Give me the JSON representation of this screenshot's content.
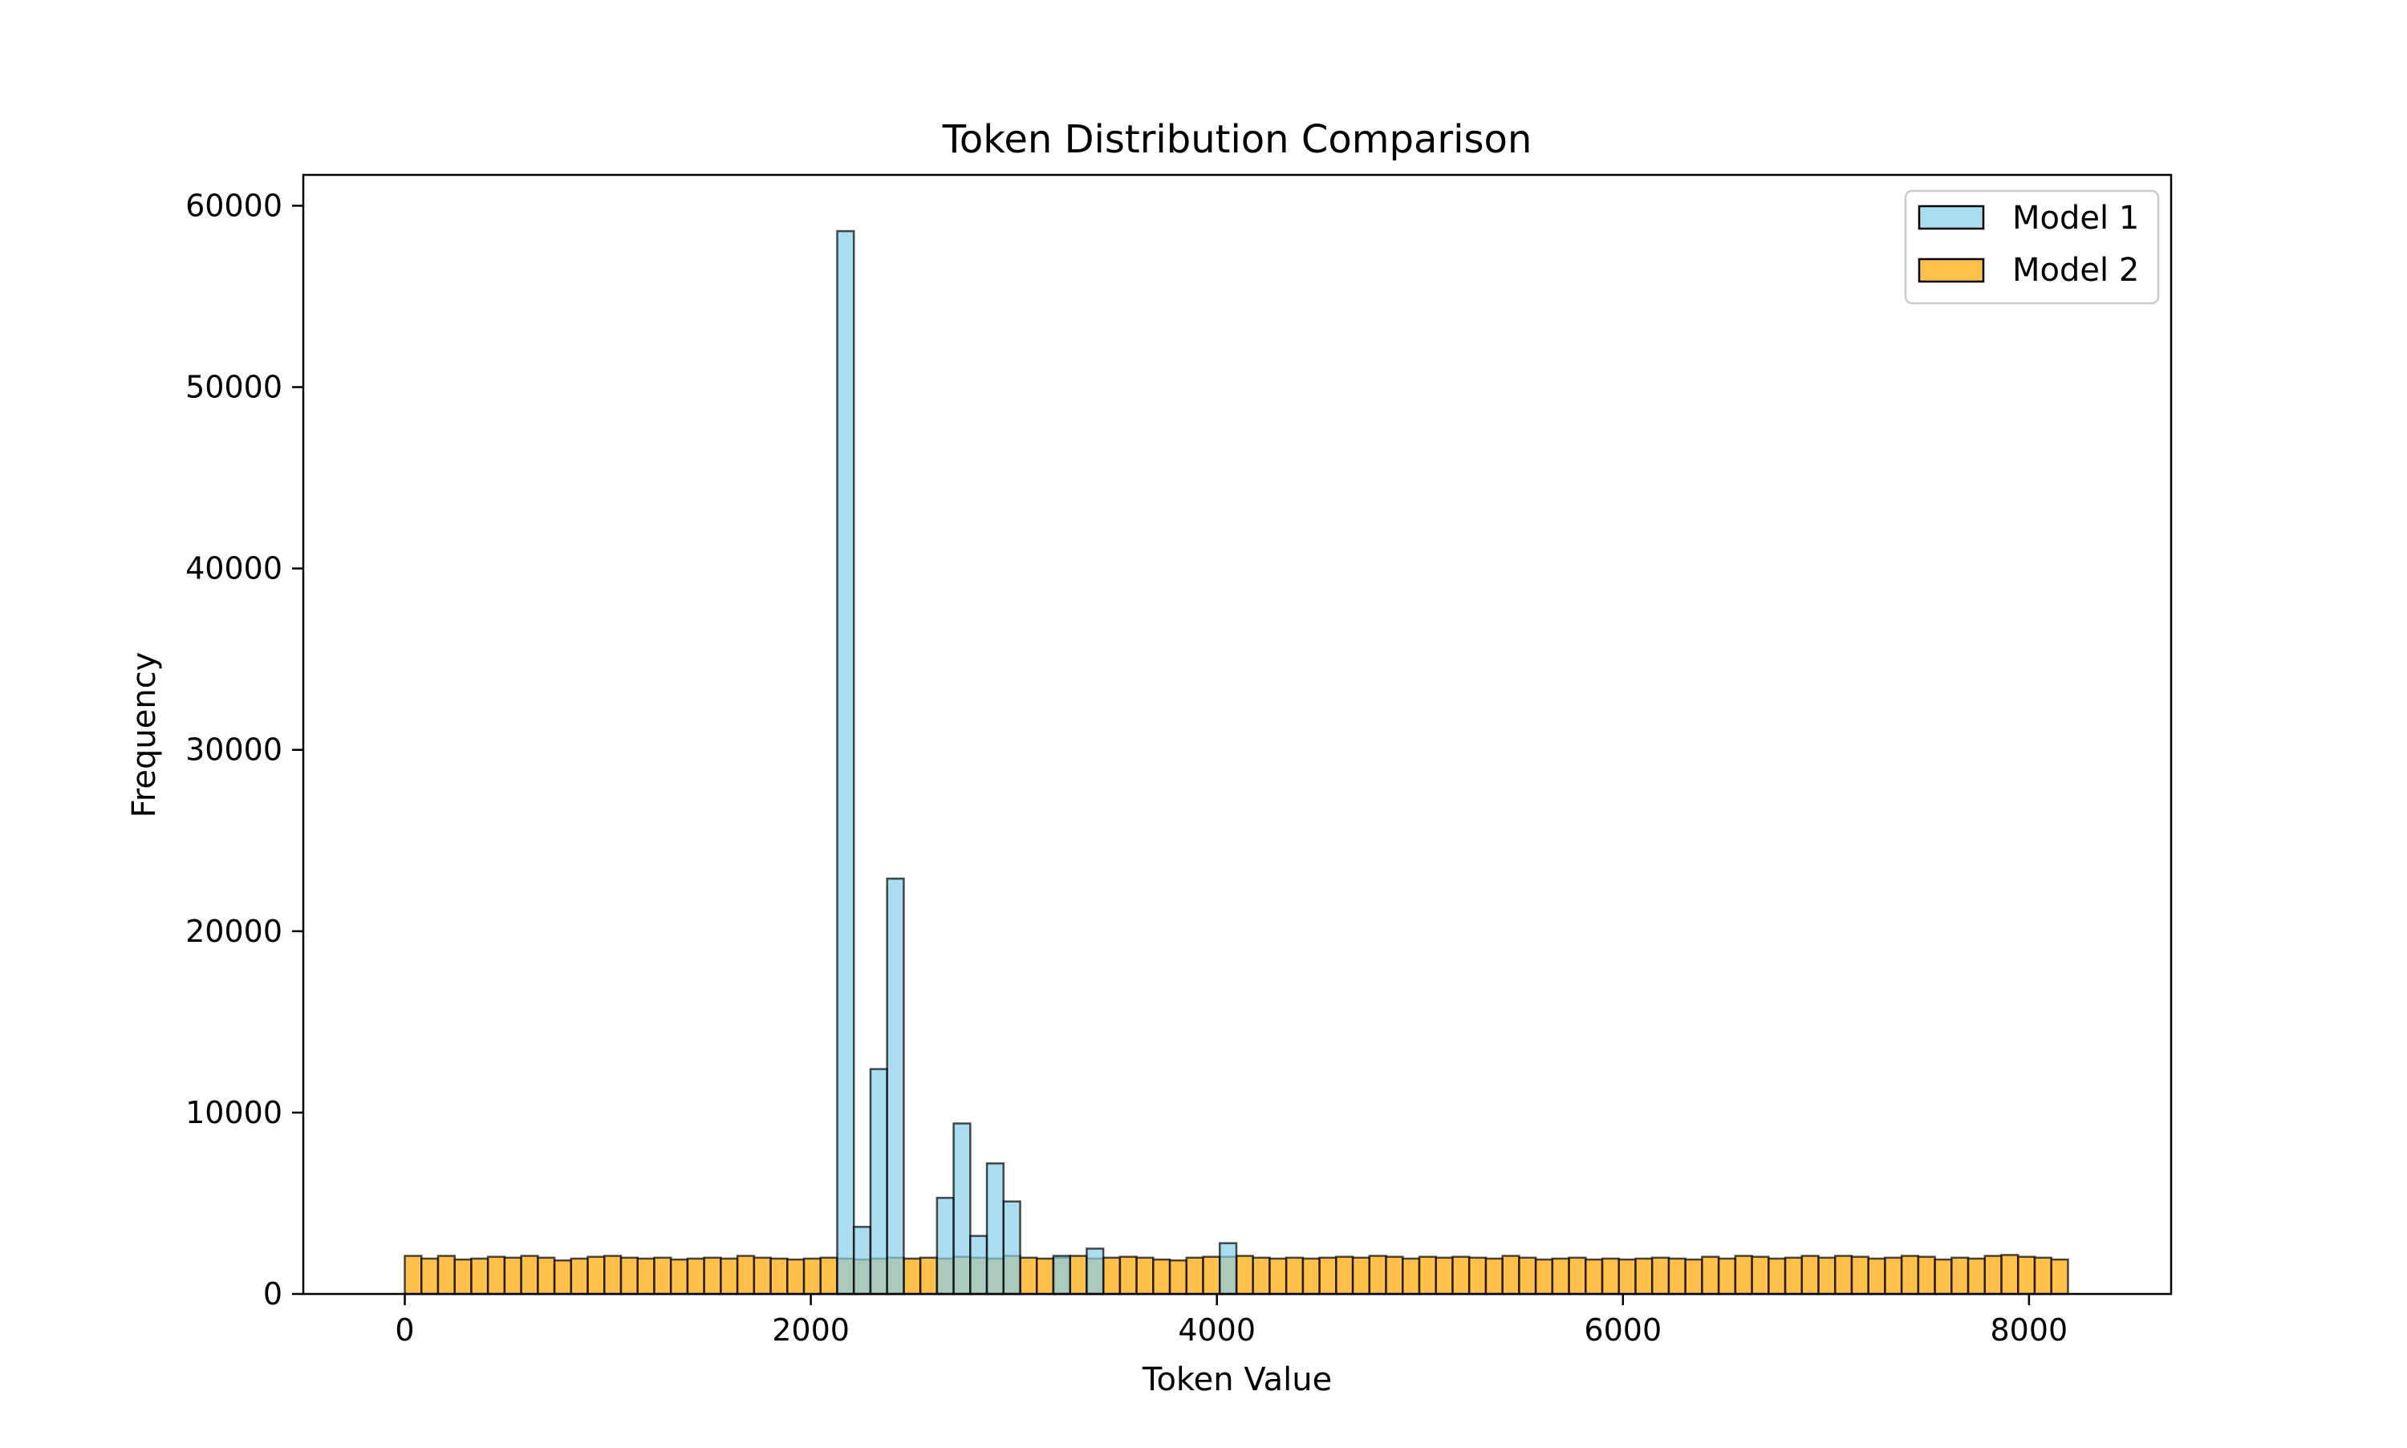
{
  "chart_data": {
    "type": "histogram",
    "title": "Token Distribution Comparison",
    "xlabel": "Token Value",
    "ylabel": "Frequency",
    "xlim": [
      -500,
      8700
    ],
    "ylim": [
      0,
      61700
    ],
    "xticks": [
      0,
      2000,
      4000,
      6000,
      8000
    ],
    "yticks": [
      0,
      10000,
      20000,
      30000,
      40000,
      50000,
      60000
    ],
    "grid": false,
    "legend_position": "top-right",
    "bins": {
      "start": 0,
      "width": 81.92,
      "count": 100
    },
    "series": [
      {
        "name": "Model 1",
        "color": "#87ceeb",
        "edge_color": "#000000",
        "opacity": 0.7,
        "values": [
          0,
          0,
          0,
          0,
          0,
          0,
          0,
          0,
          0,
          0,
          0,
          0,
          0,
          0,
          0,
          0,
          0,
          0,
          0,
          0,
          0,
          0,
          0,
          0,
          0,
          0,
          58600,
          3700,
          12400,
          22900,
          0,
          0,
          5300,
          9400,
          3200,
          7200,
          5100,
          0,
          0,
          2100,
          0,
          2500,
          0,
          0,
          0,
          0,
          0,
          0,
          0,
          2800,
          0,
          0,
          0,
          0,
          0,
          0,
          0,
          0,
          0,
          0,
          0,
          0,
          0,
          0,
          0,
          0,
          0,
          0,
          0,
          0,
          0,
          0,
          0,
          0,
          0,
          0,
          0,
          0,
          0,
          0,
          0,
          0,
          0,
          0,
          0,
          0,
          0,
          0,
          0,
          0,
          0,
          0,
          0,
          0,
          0,
          0,
          0,
          0,
          0,
          0
        ]
      },
      {
        "name": "Model 2",
        "color": "#ffa500",
        "edge_color": "#000000",
        "opacity": 0.7,
        "values": [
          2100,
          1950,
          2100,
          1900,
          1950,
          2050,
          2000,
          2100,
          2000,
          1850,
          1950,
          2050,
          2100,
          2000,
          1950,
          2000,
          1900,
          1950,
          2000,
          1950,
          2100,
          2000,
          1950,
          1900,
          1950,
          2000,
          1950,
          1900,
          1950,
          2000,
          1950,
          2000,
          1950,
          2050,
          2000,
          1950,
          2100,
          2000,
          1950,
          2000,
          2100,
          1950,
          2000,
          2050,
          2000,
          1900,
          1850,
          2000,
          2050,
          2050,
          2100,
          2000,
          1950,
          2000,
          1950,
          2000,
          2050,
          2000,
          2100,
          2050,
          1950,
          2050,
          2000,
          2050,
          2000,
          1950,
          2100,
          2000,
          1900,
          1950,
          2000,
          1900,
          1950,
          1900,
          1950,
          2000,
          1950,
          1900,
          2050,
          1950,
          2100,
          2050,
          1950,
          2000,
          2100,
          2000,
          2100,
          2050,
          1950,
          2000,
          2100,
          2050,
          1900,
          2000,
          1950,
          2100,
          2150,
          2050,
          2000,
          1900
        ]
      }
    ]
  }
}
